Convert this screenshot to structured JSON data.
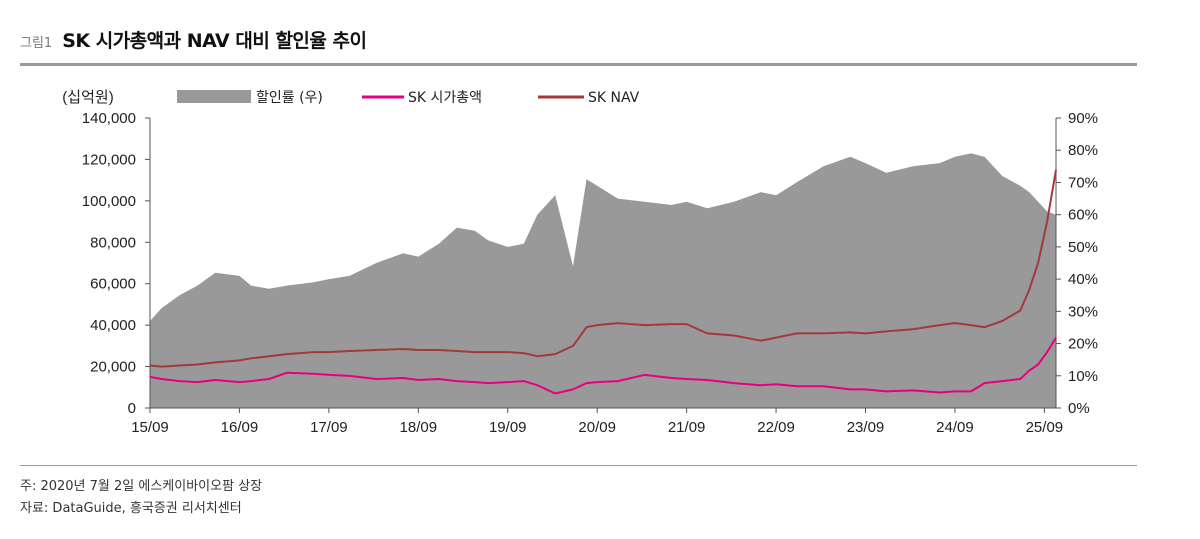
{
  "figure": {
    "number": "그림1",
    "title": "SK 시가총액과 NAV 대비 할인율 추이"
  },
  "notes": {
    "note": "주: 2020년 7월 2일 에스케이바이오팜 상장",
    "source": "자료: DataGuide, 흥국증권 리서치센터"
  },
  "chart_data": {
    "type": "area",
    "title": "",
    "ylabel_left": "(십억원)",
    "ylim_left": [
      0,
      140000
    ],
    "yticks_left": [
      "140,000",
      "120,000",
      "100,000",
      "80,000",
      "60,000",
      "40,000",
      "20,000",
      "0"
    ],
    "ylim_right": [
      0,
      90
    ],
    "yticks_right": [
      "90%",
      "80%",
      "70%",
      "60%",
      "50%",
      "40%",
      "30%",
      "20%",
      "10%",
      "0%"
    ],
    "xticks": [
      "15/09",
      "16/09",
      "17/09",
      "18/09",
      "19/09",
      "20/09",
      "21/09",
      "22/09",
      "23/09",
      "24/09",
      "25/09"
    ],
    "legend": [
      "할인률 (우)",
      "SK 시가총액",
      "SK NAV"
    ],
    "legend_position": "top",
    "colors": {
      "discount": "#999999",
      "market_cap": "#e6007e",
      "nav": "#a33a3a"
    },
    "x": [
      2015.67,
      2015.8,
      2016.0,
      2016.2,
      2016.4,
      2016.67,
      2016.8,
      2017.0,
      2017.2,
      2017.5,
      2017.67,
      2017.9,
      2018.2,
      2018.5,
      2018.67,
      2018.9,
      2019.1,
      2019.3,
      2019.45,
      2019.67,
      2019.85,
      2020.0,
      2020.2,
      2020.4,
      2020.55,
      2020.67,
      2020.9,
      2021.2,
      2021.5,
      2021.67,
      2021.9,
      2022.2,
      2022.5,
      2022.67,
      2022.9,
      2023.2,
      2023.5,
      2023.67,
      2023.9,
      2024.2,
      2024.5,
      2024.67,
      2024.85,
      2025.0,
      2025.2,
      2025.4,
      2025.5,
      2025.6,
      2025.7,
      2025.8
    ],
    "series": [
      {
        "name": "할인률 (우)",
        "axis": "right",
        "values": [
          27,
          31,
          35,
          38,
          42,
          41,
          38,
          37,
          38,
          39,
          40,
          41,
          45,
          48,
          47,
          51,
          56,
          55,
          52,
          50,
          51,
          60,
          66,
          44,
          71,
          69,
          65,
          64,
          63,
          64,
          62,
          64,
          67,
          66,
          70,
          75,
          78,
          76,
          73,
          75,
          76,
          78,
          79,
          78,
          72,
          69,
          67,
          64,
          61,
          60
        ]
      },
      {
        "name": "SK 시가총액",
        "axis": "left",
        "values": [
          15000,
          14000,
          13000,
          12500,
          13500,
          12500,
          13000,
          14000,
          17000,
          16500,
          16000,
          15500,
          14000,
          14500,
          13500,
          14000,
          13000,
          12500,
          12000,
          12500,
          13000,
          11000,
          7000,
          9000,
          12000,
          12500,
          13000,
          16000,
          14500,
          14000,
          13500,
          12000,
          11000,
          11500,
          10500,
          10500,
          9000,
          9000,
          8000,
          8500,
          7500,
          8000,
          8000,
          12000,
          13000,
          14000,
          18000,
          21000,
          27000,
          34000
        ]
      },
      {
        "name": "SK NAV",
        "axis": "left",
        "values": [
          20500,
          20000,
          20500,
          21000,
          22000,
          23000,
          24000,
          25000,
          26000,
          27000,
          27000,
          27500,
          28000,
          28500,
          28000,
          28000,
          27500,
          27000,
          27000,
          27000,
          26500,
          25000,
          26000,
          30000,
          39000,
          40000,
          41000,
          40000,
          40500,
          40500,
          36000,
          35000,
          32500,
          34000,
          36000,
          36000,
          36500,
          36000,
          37000,
          38000,
          40000,
          41000,
          40000,
          39000,
          42000,
          47000,
          57000,
          70000,
          90000,
          115000
        ]
      }
    ]
  }
}
